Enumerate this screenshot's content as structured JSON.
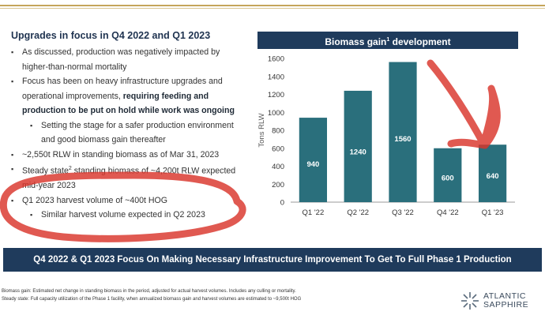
{
  "slide": {
    "heading": "Upgrades in focus in Q4 2022 and Q1 2023",
    "bullets": {
      "b1": "As discussed, production was negatively impacted by higher-than-normal mortality",
      "b2_plain": "Focus has been on heavy infrastructure upgrades and operational improvements, ",
      "b2_bold": "requiring feeding and production to be put on hold while work was ongoing",
      "b2_sub": "Setting the stage for a safer production environment and good biomass gain thereafter",
      "b3": "~2,550t RLW in standing biomass as of Mar 31, 2023",
      "b4_a": "Steady state",
      "b4_sup": "2",
      "b4_b": " standing biomass of ~4,200t RLW expected mid-year 2023",
      "b5": "Q1 2023 harvest volume of ~400t HOG",
      "b5_sub": "Similar harvest volume expected in Q2 2023"
    },
    "chart_header": {
      "title_a": "Biomass gain",
      "title_sup": "1",
      "title_b": " development"
    },
    "banner": "Q4 2022 & Q1 2023 Focus On Making Necessary Infrastructure Improvement To Get To Full Phase 1 Production",
    "footnotes": {
      "f1": "Biomass gain: Estimated net change in standing biomass in the period, adjusted for actual harvest volumes. Includes any culling or mortality.",
      "f2": "Steady state: Full capacity utilization of the Phase 1 facility, when annualized biomass gain and harvest volumes are estimated to ~9,500t HOG"
    },
    "logo": {
      "line1": "ATLANTIC",
      "line2": "SAPPHIRE"
    }
  },
  "chart_data": {
    "type": "bar",
    "title": "Biomass gain1 development",
    "categories": [
      "Q1 '22",
      "Q2 '22",
      "Q3 '22",
      "Q4 '22",
      "Q1 '23"
    ],
    "values": [
      940,
      1240,
      1560,
      600,
      640
    ],
    "ylabel": "Tons RLW",
    "xlabel": "",
    "ylim": [
      0,
      1600
    ],
    "yticks": [
      0,
      200,
      400,
      600,
      800,
      1000,
      1200,
      1400,
      1600
    ],
    "bar_color": "#2a6f7c",
    "label_color": "#ffffff"
  },
  "colors": {
    "navy": "#1f3b5c",
    "gold": "#c5a55a",
    "annotation_red": "#d9342b"
  }
}
